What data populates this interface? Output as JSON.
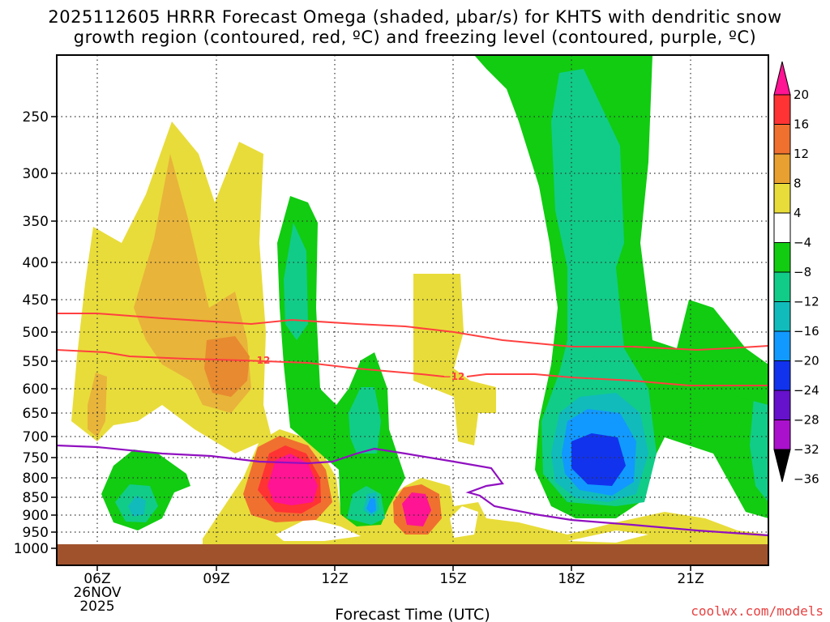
{
  "title_line1": "2025112605 HRRR Forecast Omega (shaded, µbar/s) for KHTS with dendritic snow",
  "title_line2": "growth region (contoured, red, ºC) and freezing level (contoured, purple, ºC)",
  "watermark": "coolwx.com/models",
  "colors": {
    "ground": "#a0522d",
    "isotherm": "#ff4040",
    "freezing": "#9010c0",
    "y4": "#e8dc3a",
    "y8": "#e8b43a",
    "y12": "#e88a30"
  },
  "chart_data": {
    "type": "heatmap",
    "xlabel": "Forecast Time (UTC)",
    "x_ticks": [
      {
        "label": "06Z",
        "sub1": "26NOV",
        "sub2": "2025"
      },
      {
        "label": "09Z"
      },
      {
        "label": "12Z"
      },
      {
        "label": "15Z"
      },
      {
        "label": "18Z"
      },
      {
        "label": "21Z"
      }
    ],
    "y_ticks": [
      "250",
      "300",
      "350",
      "400",
      "450",
      "500",
      "550",
      "600",
      "650",
      "700",
      "750",
      "800",
      "850",
      "900",
      "950",
      "1000"
    ],
    "colorbar": {
      "labels": [
        "20",
        "16",
        "12",
        "8",
        "4",
        "−4",
        "−8",
        "−12",
        "−16",
        "−20",
        "−24",
        "−28",
        "−32",
        "−36"
      ],
      "colors": [
        "#ff1493",
        "#ff3333",
        "#f07030",
        "#e8a030",
        "#e8dc3a",
        "#ffffff",
        "#11cc11",
        "#11cc88",
        "#11bbbb",
        "#1199ff",
        "#1133ee",
        "#6611cc",
        "#aa11cc",
        "#aaaaaa"
      ]
    },
    "isotherm_label": "−12"
  }
}
